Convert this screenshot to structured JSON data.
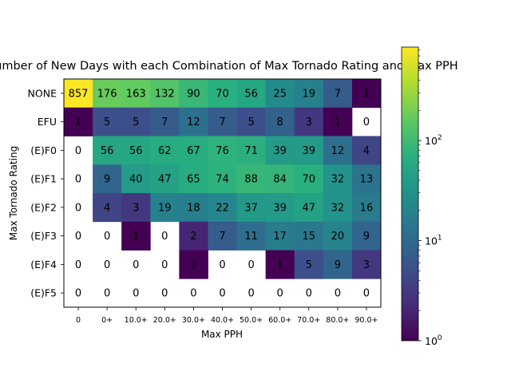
{
  "chart_data": {
    "type": "heatmap",
    "title": "Number of New Days with each Combination of Max Tornado Rating and Max PPH",
    "xlabel": "Max PPH",
    "ylabel": "Max Tornado Rating",
    "x_categories": [
      "0",
      "0+",
      "10.0+",
      "20.0+",
      "30.0+",
      "40.0+",
      "50.0+",
      "60.0+",
      "70.0+",
      "80.0+",
      "90.0+"
    ],
    "y_categories": [
      "NONE",
      "EFU",
      "(E)F0",
      "(E)F1",
      "(E)F2",
      "(E)F3",
      "(E)F4",
      "(E)F5"
    ],
    "values": [
      [
        857,
        176,
        163,
        132,
        90,
        70,
        56,
        25,
        19,
        7,
        1
      ],
      [
        1,
        5,
        5,
        7,
        12,
        7,
        5,
        8,
        3,
        1,
        0
      ],
      [
        0,
        56,
        56,
        62,
        67,
        76,
        71,
        39,
        39,
        12,
        4
      ],
      [
        0,
        9,
        40,
        47,
        65,
        74,
        88,
        84,
        70,
        32,
        13
      ],
      [
        0,
        4,
        3,
        19,
        18,
        22,
        37,
        39,
        47,
        32,
        16
      ],
      [
        0,
        0,
        1,
        0,
        2,
        7,
        11,
        17,
        15,
        20,
        9
      ],
      [
        0,
        0,
        0,
        0,
        1,
        0,
        0,
        1,
        5,
        9,
        3
      ],
      [
        0,
        0,
        0,
        0,
        0,
        0,
        0,
        0,
        0,
        0,
        0
      ]
    ],
    "colorbar": {
      "scale": "log",
      "colormap": "viridis",
      "range": [
        1,
        857
      ],
      "tick_labels": [
        "10^0",
        "10^1",
        "10^2"
      ],
      "tick_values": [
        1,
        10,
        100
      ]
    },
    "zero_cells": "blank (white)"
  }
}
